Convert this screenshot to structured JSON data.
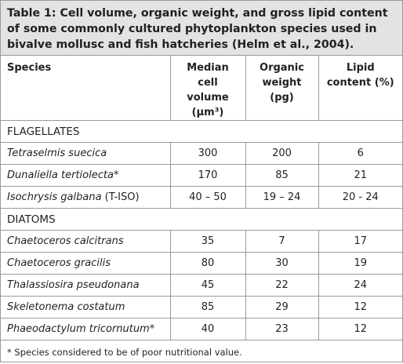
{
  "title": "Table 1:  Cell volume, organic weight, and gross lipid content of some commonly cultured phytoplankton species used in bivalve mollusc and fish hatcheries (Helm et al., 2004).",
  "table": {
    "header": [
      "Species",
      "Median cell volume (µm³)",
      "Organic weight (pg)",
      "Lipid content (%)"
    ],
    "sections": [
      {
        "name": "FLAGELLATES",
        "rows": [
          {
            "species": "Tetraselmis suecica",
            "values": [
              "300",
              "200",
              "6"
            ]
          },
          {
            "species": "Dunaliella tertiolecta*",
            "values": [
              "170",
              "85",
              "21"
            ]
          },
          {
            "species": "Isochrysis galbana",
            "suffix": "(T-ISO)",
            "values": [
              "40 – 50",
              "19 – 24",
              "20 - 24"
            ]
          }
        ]
      },
      {
        "name": "DIATOMS",
        "rows": [
          {
            "species": "Chaetoceros calcitrans",
            "values": [
              "35",
              "7",
              "17"
            ]
          },
          {
            "species": "Chaetoceros gracilis",
            "values": [
              "80",
              "30",
              "19"
            ]
          },
          {
            "species": "Thalassiosira pseudonana",
            "values": [
              "45",
              "22",
              "24"
            ]
          },
          {
            "species": "Skeletonema costatum",
            "values": [
              "85",
              "29",
              "12"
            ]
          },
          {
            "species": "Phaeodactylum tricornutum*",
            "values": [
              "40",
              "23",
              "12"
            ]
          }
        ]
      }
    ],
    "footnote": "* Species considered to be of poor nutritional value."
  }
}
